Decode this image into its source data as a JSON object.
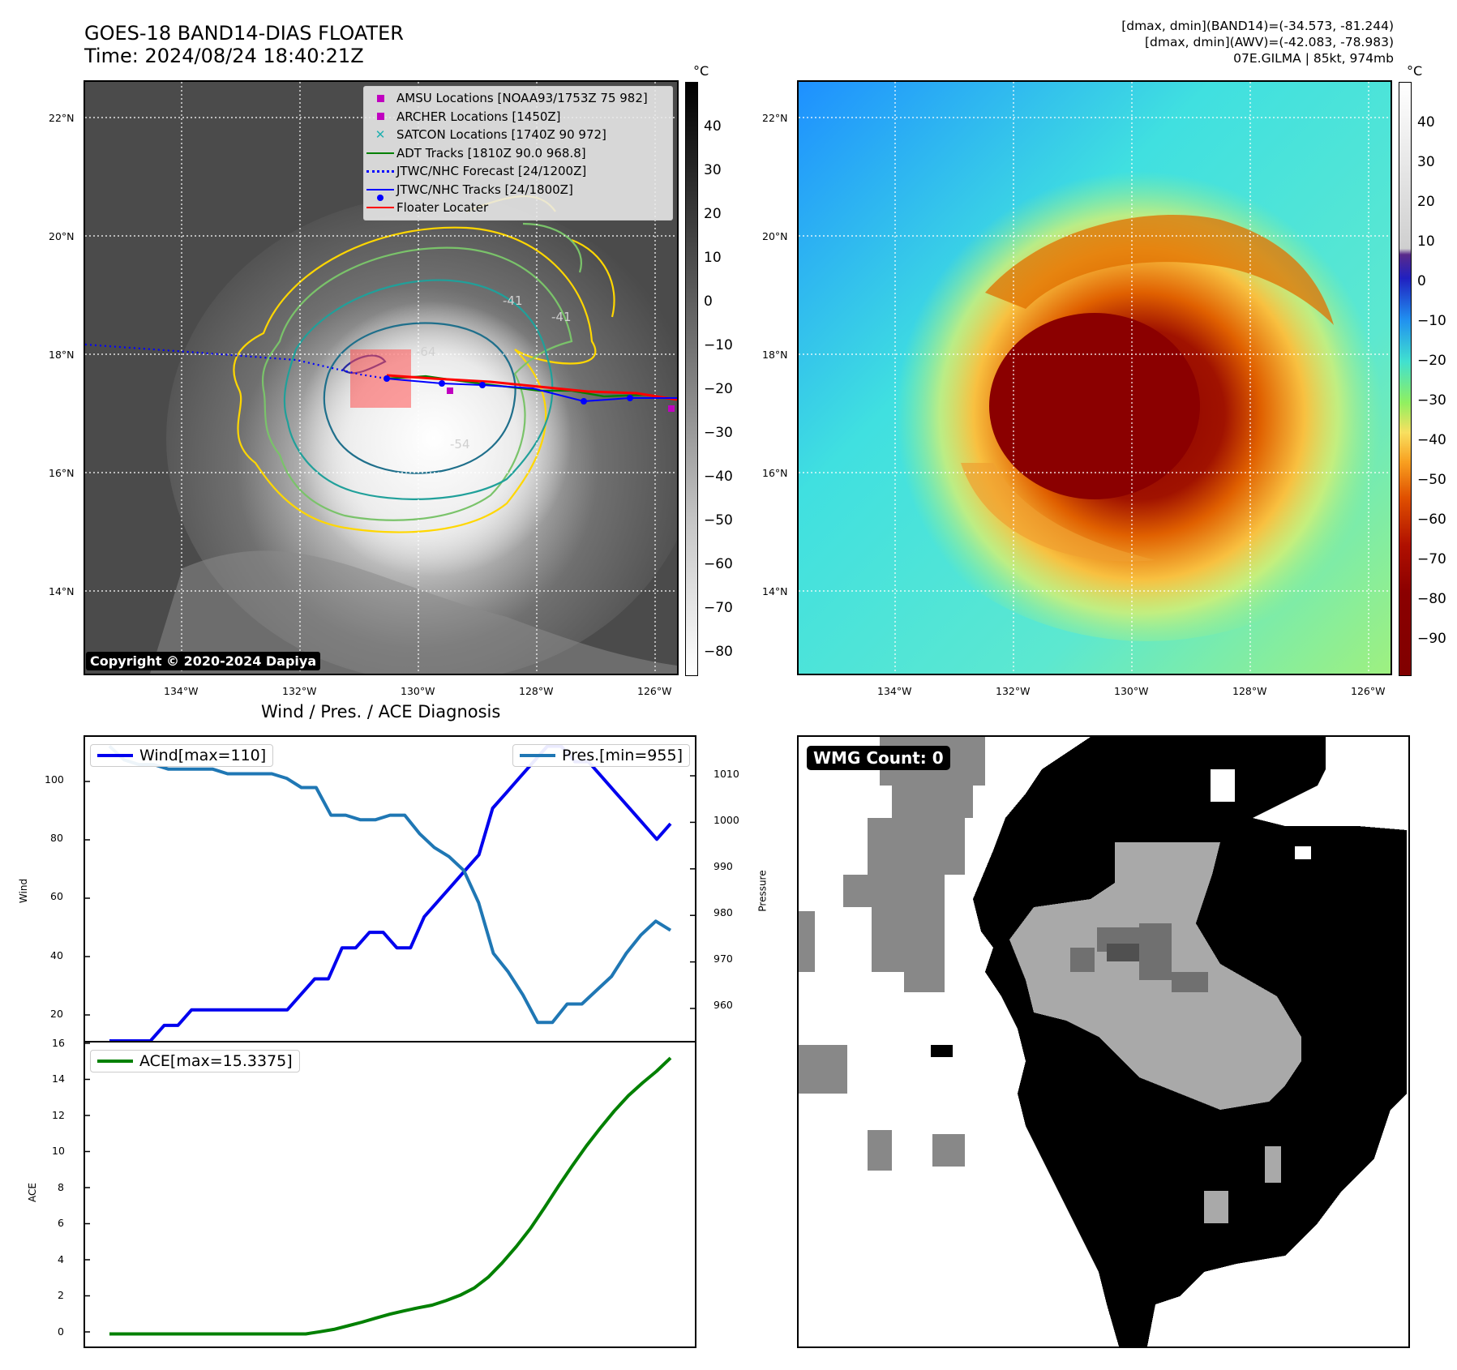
{
  "header": {
    "title_line1": "GOES-18 BAND14-DIAS FLOATER",
    "title_line2": "Time: 2024/08/24 18:40:21Z",
    "right_line1": "[dmax, dmin](BAND14)=(-34.573, -81.244)",
    "right_line2": "[dmax, dmin](AWV)=(-42.083, -78.983)",
    "right_line3": "07E.GILMA | 85kt, 974mb"
  },
  "map": {
    "lat_labels": [
      "22°N",
      "20°N",
      "18°N",
      "16°N",
      "14°N"
    ],
    "lon_labels": [
      "134°W",
      "132°W",
      "130°W",
      "128°W",
      "126°W"
    ],
    "contour_labels": [
      "-64",
      "-54",
      "-41",
      "-41"
    ],
    "copyright": "Copyright © 2020-2024 Dapiya",
    "legend": [
      {
        "label": "AMSU Locations [NOAA93/1753Z 75 982]",
        "marker": "square",
        "color": "#c000c0"
      },
      {
        "label": "ARCHER Locations [1450Z]",
        "marker": "square",
        "color": "#c000c0"
      },
      {
        "label": "SATCON Locations [1740Z 90 972]",
        "marker": "x",
        "color": "#20b0b0"
      },
      {
        "label": "ADT Tracks [1810Z 90.0 968.8]",
        "marker": "line",
        "color": "#008000"
      },
      {
        "label": "JTWC/NHC Forecast [24/1200Z]",
        "marker": "dotted",
        "color": "#0000ff"
      },
      {
        "label": "JTWC/NHC Tracks [24/1800Z]",
        "marker": "line-dot",
        "color": "#0000ff"
      },
      {
        "label": "Floater Locater",
        "marker": "line",
        "color": "#ff0000"
      }
    ]
  },
  "colorbar_gray": {
    "unit": "°C",
    "ticks": [
      "40",
      "30",
      "20",
      "10",
      "0",
      "−10",
      "−20",
      "−30",
      "−40",
      "−50",
      "−60",
      "−70",
      "−80"
    ]
  },
  "colorbar_color": {
    "unit": "°C",
    "ticks": [
      "40",
      "30",
      "20",
      "10",
      "0",
      "−10",
      "−20",
      "−30",
      "−40",
      "−50",
      "−60",
      "−70",
      "−80",
      "−90"
    ]
  },
  "wmg": {
    "label": "WMG Count: 0"
  },
  "diagnosis": {
    "title": "Wind / Pres. / ACE Diagnosis",
    "wind_ylabel": "Wind",
    "pres_ylabel": "Pressure",
    "ace_ylabel": "ACE",
    "wind_legend": "Wind[max=110]",
    "pres_legend": "Pres.[min=955]",
    "ace_legend": "ACE[max=15.3375]",
    "wind_ticks": [
      "100",
      "80",
      "60",
      "40",
      "20"
    ],
    "pres_ticks": [
      "1010",
      "1000",
      "990",
      "980",
      "970",
      "960"
    ],
    "ace_ticks": [
      "16",
      "14",
      "12",
      "10",
      "8",
      "6",
      "4",
      "2",
      "0"
    ]
  },
  "chart_data": [
    {
      "type": "line",
      "xlabel": "",
      "ylabel": "Wind",
      "ylim": [
        15,
        113
      ],
      "series": [
        {
          "name": "Wind[max=110]",
          "color": "#0000ee",
          "values": [
            15,
            15,
            15,
            15,
            20,
            20,
            25,
            25,
            25,
            25,
            25,
            25,
            25,
            25,
            30,
            35,
            35,
            45,
            45,
            50,
            50,
            45,
            45,
            55,
            60,
            65,
            70,
            75,
            90,
            95,
            100,
            105,
            110,
            110,
            105,
            105,
            100,
            95,
            90,
            85,
            80,
            85
          ]
        }
      ]
    },
    {
      "type": "line",
      "xlabel": "",
      "ylabel": "Pressure",
      "ylim": [
        951,
        1017
      ],
      "series": [
        {
          "name": "Pres.[min=955]",
          "color": "#1f77b4",
          "values": [
            1015,
            1012,
            1011,
            1011,
            1010,
            1010,
            1010,
            1010,
            1009,
            1009,
            1009,
            1009,
            1008,
            1006,
            1006,
            1000,
            1000,
            999,
            999,
            1000,
            1000,
            996,
            993,
            991,
            988,
            981,
            970,
            966,
            961,
            955,
            955,
            959,
            959,
            962,
            965,
            970,
            974,
            977,
            975
          ]
        }
      ]
    },
    {
      "type": "line",
      "xlabel": "",
      "ylabel": "ACE",
      "ylim": [
        -0.7,
        16.2
      ],
      "series": [
        {
          "name": "ACE[max=15.3375]",
          "color": "#008000",
          "values": [
            0,
            0,
            0,
            0,
            0,
            0,
            0,
            0,
            0,
            0,
            0,
            0,
            0,
            0,
            0,
            0.12,
            0.25,
            0.45,
            0.65,
            0.88,
            1.1,
            1.28,
            1.45,
            1.6,
            1.85,
            2.15,
            2.55,
            3.15,
            3.95,
            4.85,
            5.85,
            7.0,
            8.2,
            9.35,
            10.45,
            11.45,
            12.4,
            13.25,
            13.95,
            14.6,
            15.34
          ]
        }
      ]
    }
  ]
}
